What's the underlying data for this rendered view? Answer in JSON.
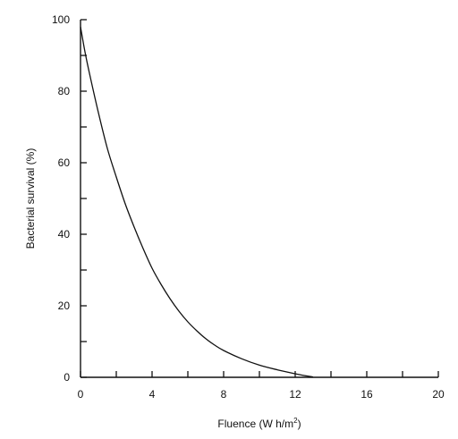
{
  "chart_data": {
    "type": "line",
    "title": "",
    "xlabel": "Fluence (W h/m",
    "xlabel_sup": "2",
    "xlabel_end": ")",
    "ylabel": "Bacterial survival (%)",
    "xlim": [
      0,
      20
    ],
    "ylim": [
      0,
      100
    ],
    "x_ticks": [
      0,
      2,
      4,
      6,
      8,
      10,
      12,
      14,
      16,
      18,
      20
    ],
    "x_tick_labels": [
      "0",
      "",
      "4",
      "",
      "8",
      "",
      "12",
      "",
      "16",
      "",
      "20"
    ],
    "y_ticks": [
      0,
      10,
      20,
      30,
      40,
      50,
      60,
      70,
      80,
      90,
      100
    ],
    "y_tick_labels": [
      "0",
      "",
      "20",
      "",
      "40",
      "",
      "60",
      "",
      "80",
      "",
      "100"
    ],
    "grid": false,
    "series": [
      {
        "x": [
          0,
          0.25,
          0.5,
          1,
          1.5,
          2,
          2.5,
          3,
          3.5,
          4,
          4.5,
          5,
          5.5,
          6,
          6.5,
          7,
          7.5,
          8,
          9,
          10,
          11,
          12,
          12.5,
          13
        ],
        "y": [
          98,
          91,
          85,
          74,
          64,
          56,
          48.5,
          42,
          36,
          30.5,
          26,
          22,
          18.5,
          15.5,
          13,
          10.8,
          9,
          7.5,
          5.2,
          3.4,
          2.1,
          1.0,
          0.5,
          0.1
        ]
      }
    ]
  }
}
